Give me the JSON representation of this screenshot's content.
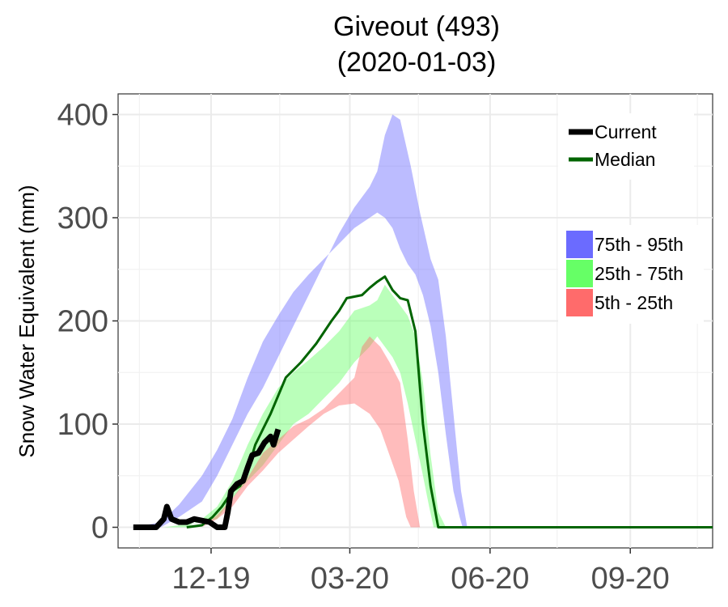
{
  "chart_data": {
    "type": "area",
    "title": "Giveout (493)",
    "subtitle": "(2020-01-03)",
    "ylabel": "Snow Water Equivalent (mm)",
    "xlabel": "",
    "x_range": [
      "2019-10-01",
      "2020-10-25"
    ],
    "ylim": [
      -20,
      420
    ],
    "y_ticks": [
      0,
      100,
      200,
      300,
      400
    ],
    "x_ticks": [
      {
        "date": "2019-12-01",
        "label": "12-19"
      },
      {
        "date": "2020-03-01",
        "label": "03-20"
      },
      {
        "date": "2020-06-01",
        "label": "06-20"
      },
      {
        "date": "2020-09-01",
        "label": "09-20"
      }
    ],
    "x_minor_ticks": [
      "2019-10-15",
      "2020-01-15",
      "2020-04-15",
      "2020-07-15",
      "2020-10-15"
    ],
    "grid": true,
    "legend_placement": "top-right",
    "bands": [
      {
        "name": "75th - 95th",
        "color": "#6b6bff",
        "fill_opacity": 0.45,
        "lower": [
          [
            10,
            0
          ],
          [
            28,
            0
          ],
          [
            40,
            10
          ],
          [
            55,
            25
          ],
          [
            65,
            50
          ],
          [
            75,
            80
          ],
          [
            85,
            110
          ],
          [
            95,
            135
          ],
          [
            105,
            165
          ],
          [
            115,
            195
          ],
          [
            125,
            225
          ],
          [
            135,
            255
          ],
          [
            145,
            285
          ],
          [
            155,
            310
          ],
          [
            165,
            330
          ],
          [
            170,
            345
          ],
          [
            175,
            380
          ],
          [
            180,
            400
          ],
          [
            185,
            395
          ],
          [
            192,
            350
          ],
          [
            198,
            305
          ],
          [
            205,
            260
          ],
          [
            210,
            240
          ],
          [
            215,
            185
          ],
          [
            220,
            110
          ],
          [
            225,
            35
          ],
          [
            229,
            0
          ]
        ],
        "upper": [
          [
            10,
            0
          ],
          [
            28,
            5
          ],
          [
            40,
            22
          ],
          [
            55,
            50
          ],
          [
            65,
            75
          ],
          [
            75,
            105
          ],
          [
            85,
            145
          ],
          [
            95,
            180
          ],
          [
            105,
            205
          ],
          [
            115,
            228
          ],
          [
            125,
            245
          ],
          [
            135,
            260
          ],
          [
            145,
            275
          ],
          [
            155,
            290
          ],
          [
            165,
            300
          ],
          [
            170,
            305
          ],
          [
            175,
            300
          ],
          [
            180,
            290
          ],
          [
            185,
            270
          ],
          [
            190,
            255
          ],
          [
            195,
            245
          ],
          [
            200,
            225
          ],
          [
            205,
            195
          ],
          [
            210,
            150
          ],
          [
            215,
            90
          ],
          [
            220,
            35
          ],
          [
            224,
            10
          ],
          [
            226,
            0
          ]
        ]
      },
      {
        "name": "25th - 75th",
        "color": "#66ff66",
        "fill_opacity": 0.45,
        "lower": [
          [
            30,
            0
          ],
          [
            45,
            0
          ],
          [
            55,
            8
          ],
          [
            65,
            20
          ],
          [
            75,
            45
          ],
          [
            85,
            80
          ],
          [
            95,
            110
          ],
          [
            105,
            135
          ],
          [
            115,
            150
          ],
          [
            125,
            162
          ],
          [
            135,
            175
          ],
          [
            145,
            190
          ],
          [
            155,
            210
          ],
          [
            165,
            215
          ],
          [
            170,
            220
          ],
          [
            175,
            235
          ],
          [
            180,
            225
          ],
          [
            185,
            215
          ],
          [
            190,
            205
          ],
          [
            195,
            185
          ],
          [
            200,
            140
          ],
          [
            205,
            70
          ],
          [
            210,
            15
          ],
          [
            215,
            0
          ]
        ],
        "upper": [
          [
            30,
            0
          ],
          [
            45,
            3
          ],
          [
            55,
            5
          ],
          [
            65,
            8
          ],
          [
            75,
            28
          ],
          [
            85,
            45
          ],
          [
            95,
            60
          ],
          [
            105,
            80
          ],
          [
            115,
            100
          ],
          [
            125,
            110
          ],
          [
            135,
            125
          ],
          [
            145,
            140
          ],
          [
            155,
            160
          ],
          [
            165,
            175
          ],
          [
            170,
            185
          ],
          [
            175,
            175
          ],
          [
            180,
            165
          ],
          [
            185,
            150
          ],
          [
            190,
            120
          ],
          [
            195,
            85
          ],
          [
            200,
            50
          ],
          [
            204,
            20
          ],
          [
            207,
            0
          ]
        ]
      },
      {
        "name": "5th - 25th",
        "color": "#ff6b6b",
        "fill_opacity": 0.45,
        "lower": [
          [
            55,
            0
          ],
          [
            65,
            12
          ],
          [
            75,
            28
          ],
          [
            85,
            48
          ],
          [
            95,
            72
          ],
          [
            105,
            85
          ],
          [
            115,
            98
          ],
          [
            125,
            105
          ],
          [
            135,
            115
          ],
          [
            145,
            130
          ],
          [
            155,
            145
          ],
          [
            160,
            175
          ],
          [
            165,
            185
          ],
          [
            172,
            175
          ],
          [
            178,
            160
          ],
          [
            185,
            140
          ],
          [
            190,
            85
          ],
          [
            194,
            35
          ],
          [
            198,
            0
          ]
        ],
        "upper": [
          [
            55,
            0
          ],
          [
            65,
            8
          ],
          [
            75,
            20
          ],
          [
            85,
            40
          ],
          [
            95,
            55
          ],
          [
            105,
            72
          ],
          [
            115,
            85
          ],
          [
            125,
            98
          ],
          [
            135,
            110
          ],
          [
            145,
            118
          ],
          [
            155,
            120
          ],
          [
            165,
            110
          ],
          [
            172,
            95
          ],
          [
            178,
            70
          ],
          [
            184,
            45
          ],
          [
            189,
            10
          ],
          [
            192,
            0
          ]
        ]
      }
    ],
    "series": [
      {
        "name": "Median",
        "color": "#006400",
        "values": [
          [
            45,
            0
          ],
          [
            55,
            2
          ],
          [
            62,
            10
          ],
          [
            68,
            20
          ],
          [
            75,
            35
          ],
          [
            80,
            40
          ],
          [
            85,
            55
          ],
          [
            90,
            80
          ],
          [
            95,
            95
          ],
          [
            100,
            110
          ],
          [
            110,
            145
          ],
          [
            120,
            160
          ],
          [
            130,
            178
          ],
          [
            140,
            200
          ],
          [
            145,
            210
          ],
          [
            150,
            222
          ],
          [
            160,
            225
          ],
          [
            165,
            232
          ],
          [
            170,
            238
          ],
          [
            175,
            243
          ],
          [
            180,
            230
          ],
          [
            185,
            222
          ],
          [
            190,
            220
          ],
          [
            195,
            190
          ],
          [
            200,
            100
          ],
          [
            205,
            40
          ],
          [
            210,
            0
          ],
          [
            390,
            0
          ]
        ]
      },
      {
        "name": "Current",
        "color": "#000000",
        "values": [
          [
            10,
            0
          ],
          [
            25,
            0
          ],
          [
            30,
            8
          ],
          [
            32,
            20
          ],
          [
            35,
            8
          ],
          [
            40,
            5
          ],
          [
            45,
            5
          ],
          [
            50,
            8
          ],
          [
            60,
            5
          ],
          [
            65,
            0
          ],
          [
            70,
            0
          ],
          [
            72,
            15
          ],
          [
            74,
            35
          ],
          [
            78,
            42
          ],
          [
            82,
            45
          ],
          [
            85,
            58
          ],
          [
            88,
            70
          ],
          [
            92,
            72
          ],
          [
            96,
            82
          ],
          [
            100,
            88
          ],
          [
            102,
            80
          ],
          [
            105,
            95
          ]
        ]
      }
    ]
  }
}
